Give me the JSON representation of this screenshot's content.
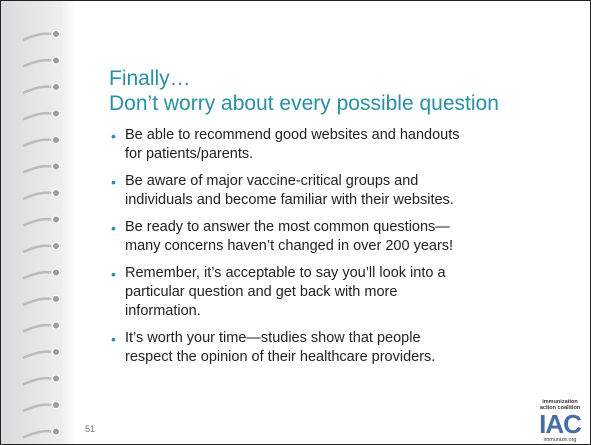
{
  "slide": {
    "title": [
      "Finally…",
      "Don’t worry about every possible question"
    ],
    "bullets": [
      [
        "Be able to recommend good websites and handouts",
        "for patients/parents."
      ],
      [
        "Be aware of major vaccine-critical groups and",
        "individuals and become familiar with their websites."
      ],
      [
        "Be ready to answer the most common questions—",
        "many concerns haven’t changed in over 200 years!"
      ],
      [
        "Remember, it’s acceptable to say you’ll look into a",
        "particular question and get back with more",
        "information."
      ],
      [
        "It’s worth your time—studies show that people",
        "respect the opinion of their healthcare providers."
      ]
    ],
    "page_number": "51",
    "logo": {
      "name_lines": [
        "immunization",
        "action coalition"
      ],
      "mark": "IAC",
      "url": "immunize.org"
    }
  }
}
